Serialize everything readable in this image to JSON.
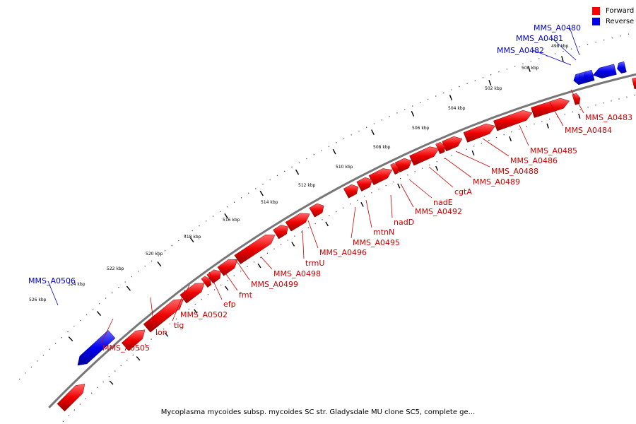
{
  "colors": {
    "forward": "#ff0000",
    "reverse": "#0000ee",
    "forward_label": "#cc0000",
    "reverse_label": "#0000cc",
    "backbone": "#777777"
  },
  "legend": {
    "forward_label": "Forward",
    "reverse_label": "Reverse"
  },
  "caption": "Mycoplasma mycoides subsp. mycoides SC str. Gladysdale MU clone SC5, complete ge...",
  "ticks": [
    "498 kbp",
    "500 kbp",
    "502 kbp",
    "504 kbp",
    "506 kbp",
    "508 kbp",
    "510 kbp",
    "512 kbp",
    "514 kbp",
    "516 kbp",
    "518 kbp",
    "520 kbp",
    "522 kbp",
    "524 kbp",
    "526 kbp"
  ],
  "genes": [
    {
      "label": "MMS_A0480",
      "strand": "reverse"
    },
    {
      "label": "MMS_A0481",
      "strand": "reverse"
    },
    {
      "label": "MMS_A0482",
      "strand": "reverse"
    },
    {
      "label": "MMS_A0483",
      "strand": "forward"
    },
    {
      "label": "MMS_A0484",
      "strand": "forward"
    },
    {
      "label": "MMS_A0485",
      "strand": "forward"
    },
    {
      "label": "MMS_A0486",
      "strand": "forward"
    },
    {
      "label": "MMS_A0488",
      "strand": "forward"
    },
    {
      "label": "MMS_A0489",
      "strand": "forward"
    },
    {
      "label": "cgtA",
      "strand": "forward"
    },
    {
      "label": "nadE",
      "strand": "forward"
    },
    {
      "label": "MMS_A0492",
      "strand": "forward"
    },
    {
      "label": "nadD",
      "strand": "forward"
    },
    {
      "label": "mtnN",
      "strand": "forward"
    },
    {
      "label": "MMS_A0495",
      "strand": "forward"
    },
    {
      "label": "MMS_A0496",
      "strand": "forward"
    },
    {
      "label": "trmU",
      "strand": "forward"
    },
    {
      "label": "MMS_A0498",
      "strand": "forward"
    },
    {
      "label": "MMS_A0499",
      "strand": "forward"
    },
    {
      "label": "fmt",
      "strand": "forward"
    },
    {
      "label": "efp",
      "strand": "forward"
    },
    {
      "label": "MMS_A0502",
      "strand": "forward"
    },
    {
      "label": "tig",
      "strand": "forward"
    },
    {
      "label": "lon",
      "strand": "forward"
    },
    {
      "label": "MMS_A0505",
      "strand": "forward"
    },
    {
      "label": "MMS_A0506",
      "strand": "reverse"
    }
  ]
}
